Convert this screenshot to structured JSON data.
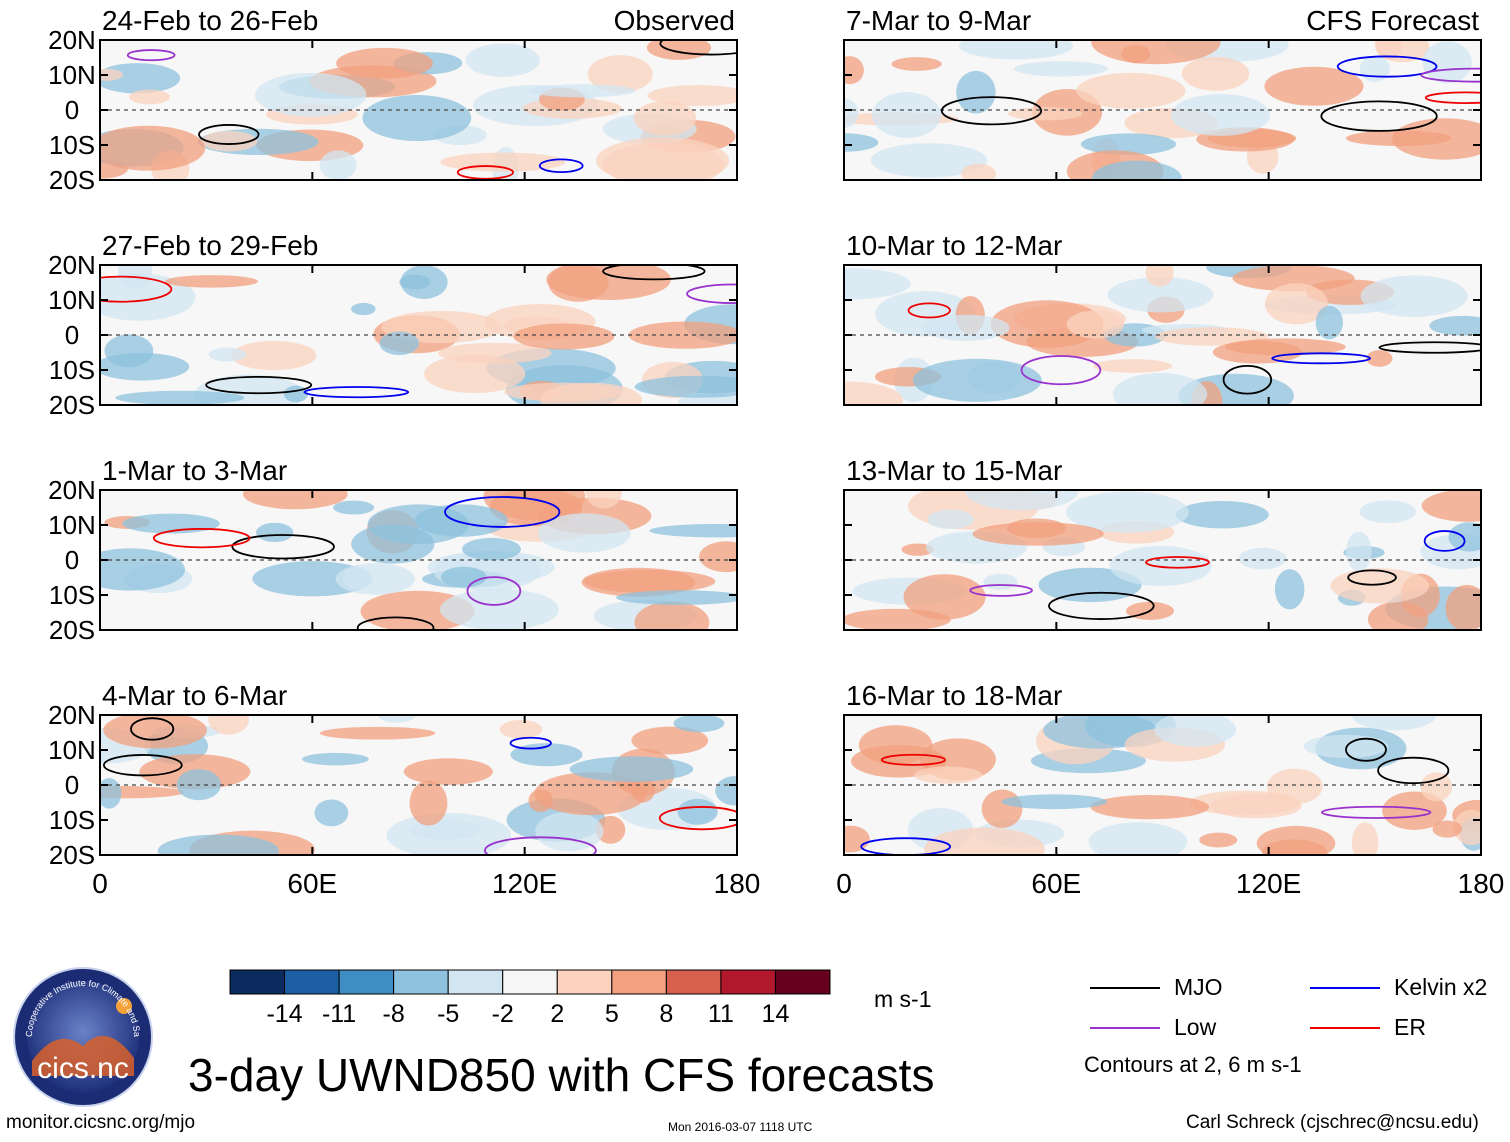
{
  "chart_data": {
    "type": "heatmap",
    "title": "3-day UWND850 with CFS forecasts",
    "variable": "850-hPa zonal wind anomaly",
    "units": "m s-1",
    "x_ticks": [
      "0",
      "60E",
      "120E",
      "180"
    ],
    "x_range": [
      0,
      180
    ],
    "y_ticks": [
      "20N",
      "10N",
      "0",
      "10S",
      "20S"
    ],
    "y_range": [
      -20,
      20
    ],
    "columns": [
      {
        "label": "Observed",
        "panels": [
          "24-Feb to 26-Feb",
          "27-Feb to 29-Feb",
          "1-Mar to 3-Mar",
          "4-Mar to 6-Mar"
        ]
      },
      {
        "label": "CFS Forecast",
        "panels": [
          "7-Mar to 9-Mar",
          "10-Mar to 12-Mar",
          "13-Mar to 15-Mar",
          "16-Mar to 18-Mar"
        ]
      }
    ],
    "colorbar": {
      "labels": [
        "-14",
        "-11",
        "-8",
        "-5",
        "-2",
        "2",
        "5",
        "8",
        "11",
        "14"
      ],
      "colors": [
        "#0b2a5e",
        "#1d5fa3",
        "#3f8dc4",
        "#8ec2de",
        "#d2e6f2",
        "#f6f6f6",
        "#fbd3bf",
        "#f2a07f",
        "#d6604d",
        "#b2182b",
        "#67001f"
      ]
    },
    "contour_legend": [
      {
        "name": "MJO",
        "color": "#000000"
      },
      {
        "name": "Kelvin x2",
        "color": "#0000ee"
      },
      {
        "name": "Low",
        "color": "#9932cc"
      },
      {
        "name": "ER",
        "color": "#ee0000"
      }
    ],
    "contour_note": "Contours at 2, 6 m s-1"
  },
  "footer": {
    "left": "monitor.cicsnc.org/mjo",
    "timestamp": "Mon 2016-03-07 1118 UTC",
    "author": "Carl Schreck (cjschrec@ncsu.edu)"
  },
  "logo": {
    "text": "cics.nc",
    "ring_text": "Cooperative Institute for Climate and Satellites"
  }
}
